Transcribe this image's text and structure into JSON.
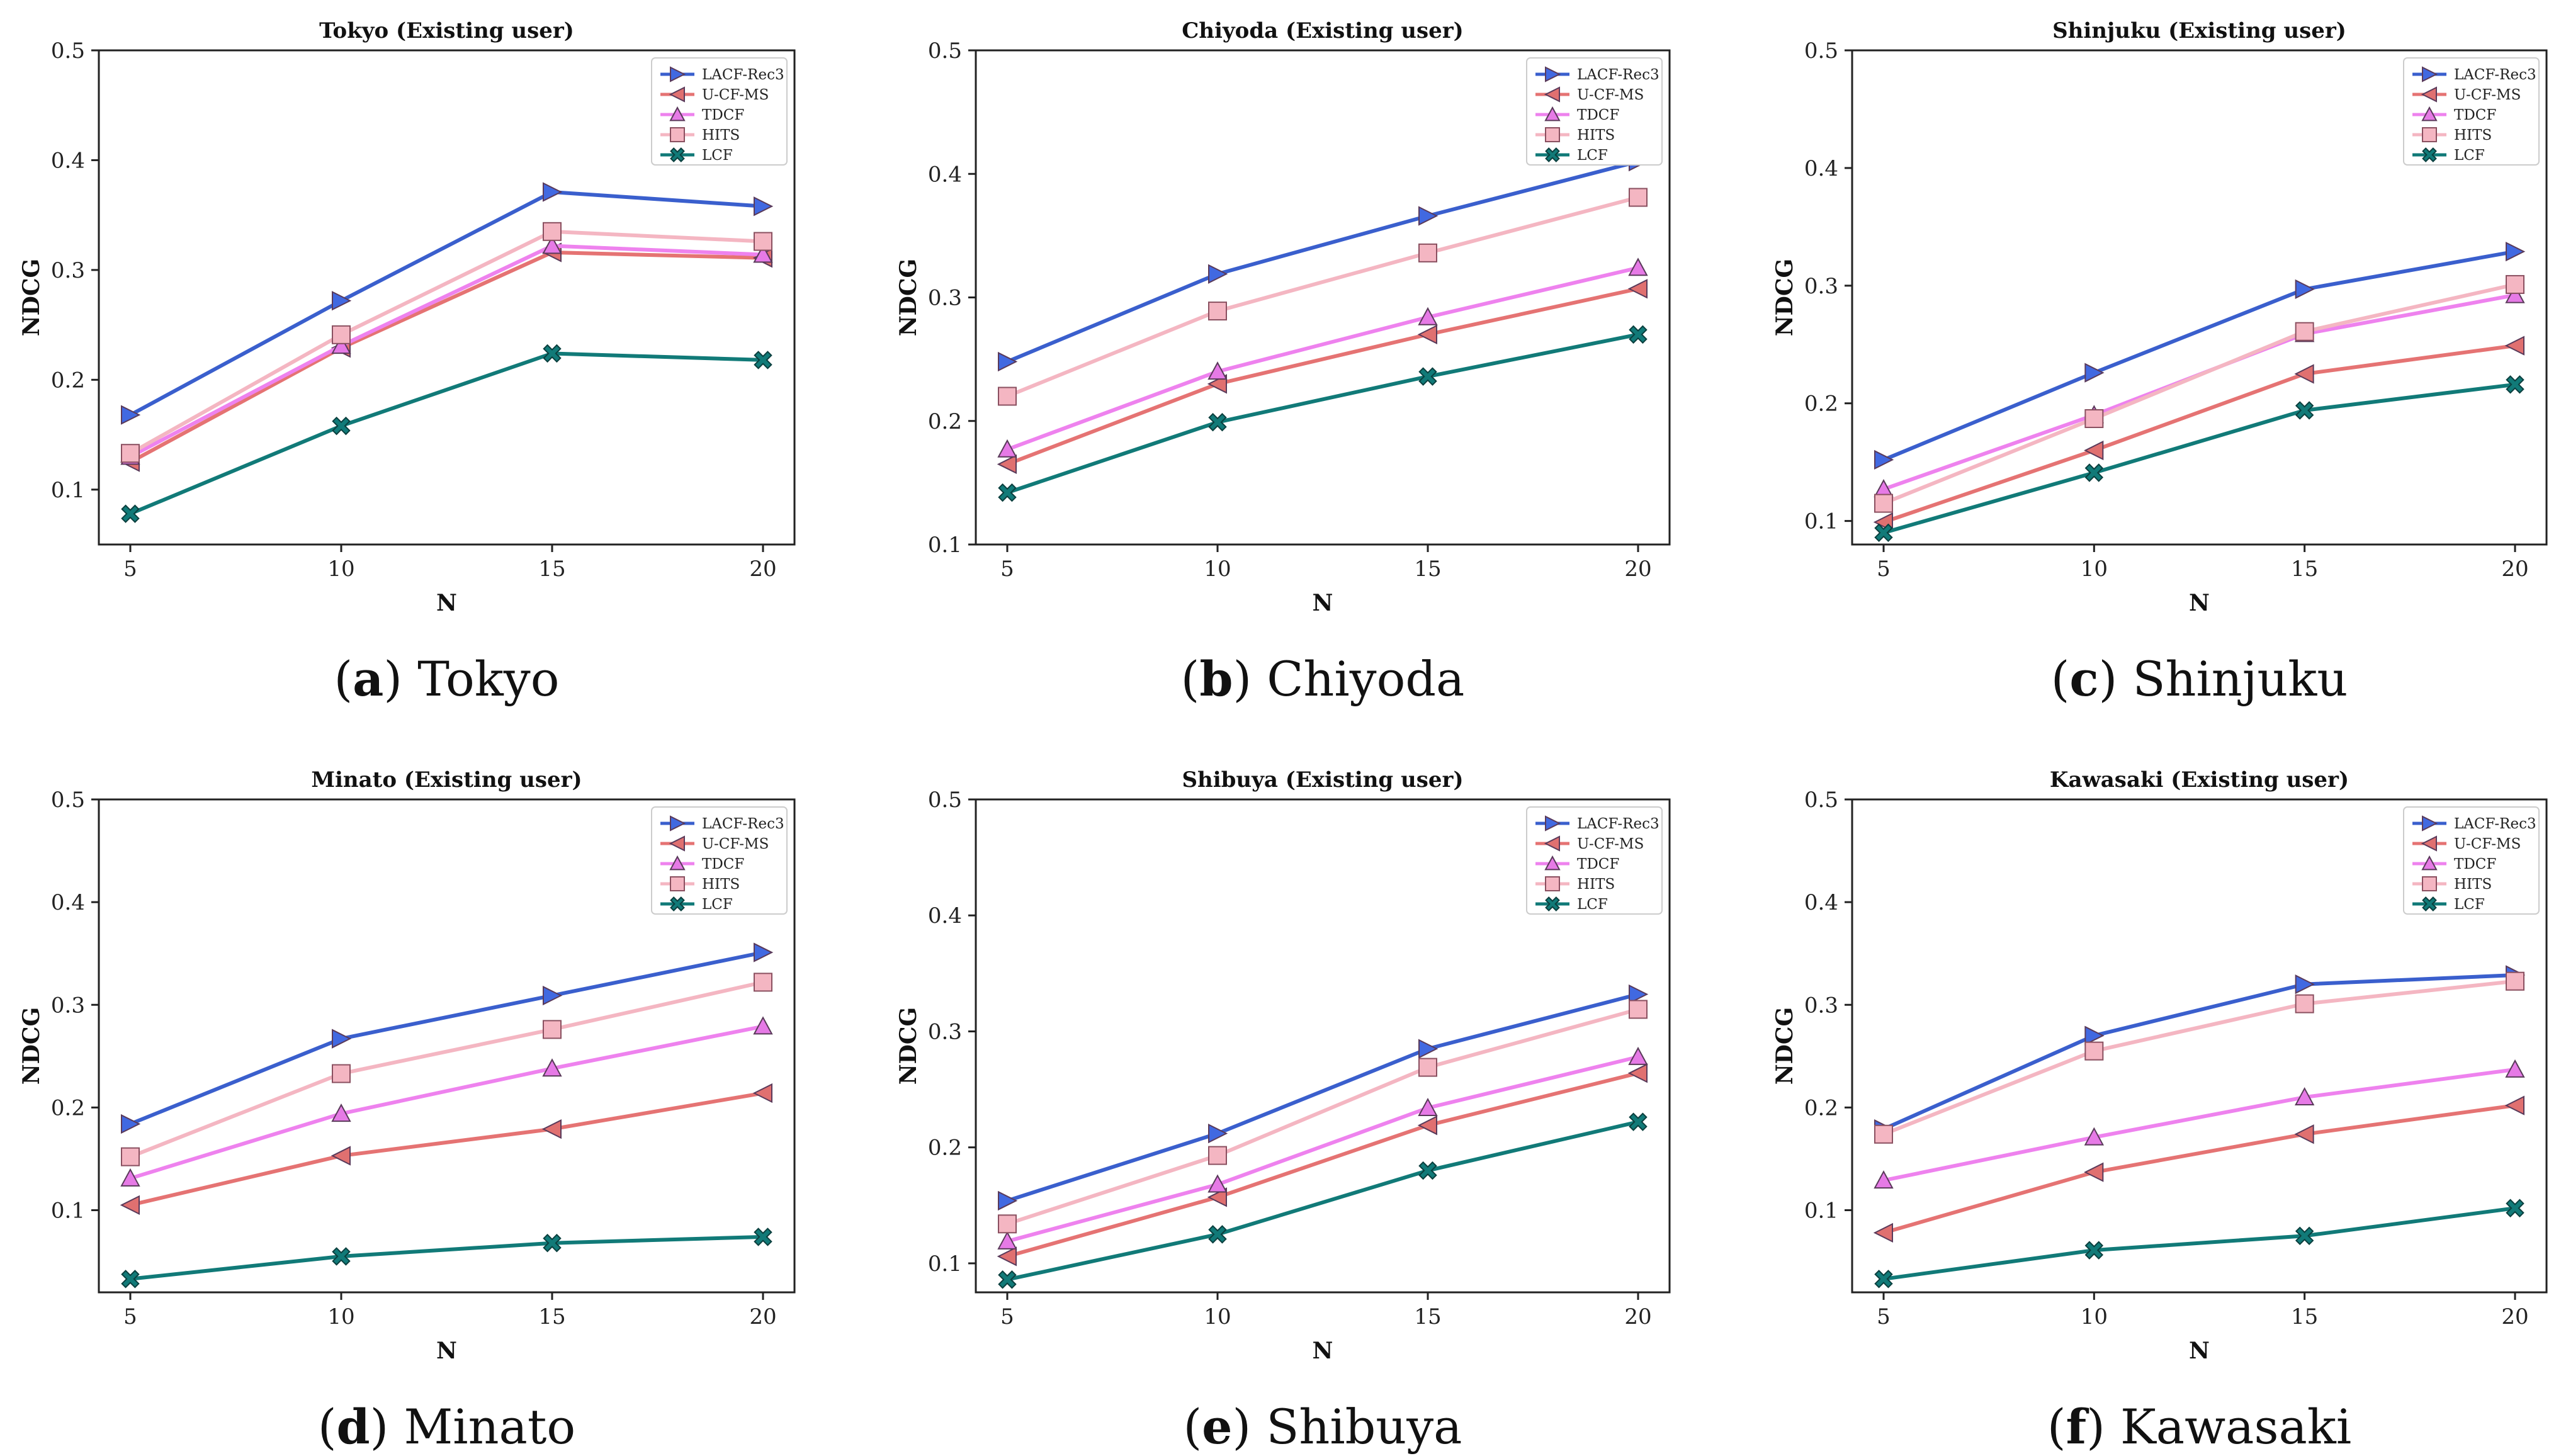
{
  "chart_data": [
    {
      "type": "line",
      "title": "Tokyo (Existing user)",
      "caption_letter": "a",
      "caption_name": "Tokyo",
      "xlabel": "N",
      "ylabel": "NDCG",
      "x": [
        5,
        10,
        15,
        20
      ],
      "x_ticks": [
        "5",
        "10",
        "15",
        "20"
      ],
      "ylim": [
        0.05,
        0.5
      ],
      "y_ticks": [
        0.1,
        0.2,
        0.3,
        0.4,
        0.5
      ],
      "y_tick_labels": [
        "0.1",
        "0.2",
        "0.3",
        "0.4",
        "0.5"
      ],
      "legend_position": "top-right",
      "series": [
        {
          "name": "LACF-Rec3",
          "values": [
            0.168,
            0.272,
            0.371,
            0.358
          ]
        },
        {
          "name": "U-CF-MS",
          "values": [
            0.125,
            0.229,
            0.316,
            0.311
          ]
        },
        {
          "name": "TDCF",
          "values": [
            0.13,
            0.231,
            0.322,
            0.314
          ]
        },
        {
          "name": "HITS",
          "values": [
            0.133,
            0.241,
            0.335,
            0.326
          ]
        },
        {
          "name": "LCF",
          "values": [
            0.078,
            0.158,
            0.224,
            0.218
          ]
        }
      ]
    },
    {
      "type": "line",
      "title": "Chiyoda (Existing user)",
      "caption_letter": "b",
      "caption_name": "Chiyoda",
      "xlabel": "N",
      "ylabel": "NDCG",
      "x": [
        5,
        10,
        15,
        20
      ],
      "x_ticks": [
        "5",
        "10",
        "15",
        "20"
      ],
      "ylim": [
        0.1,
        0.5
      ],
      "y_ticks": [
        0.1,
        0.2,
        0.3,
        0.4,
        0.5
      ],
      "y_tick_labels": [
        "0.1",
        "0.2",
        "0.3",
        "0.4",
        "0.5"
      ],
      "legend_position": "top-right",
      "series": [
        {
          "name": "LACF-Rec3",
          "values": [
            0.248,
            0.319,
            0.366,
            0.41
          ]
        },
        {
          "name": "U-CF-MS",
          "values": [
            0.165,
            0.23,
            0.27,
            0.307
          ]
        },
        {
          "name": "TDCF",
          "values": [
            0.177,
            0.24,
            0.284,
            0.324
          ]
        },
        {
          "name": "HITS",
          "values": [
            0.22,
            0.289,
            0.336,
            0.381
          ]
        },
        {
          "name": "LCF",
          "values": [
            0.142,
            0.199,
            0.236,
            0.27
          ]
        }
      ]
    },
    {
      "type": "line",
      "title": "Shinjuku (Existing user)",
      "caption_letter": "c",
      "caption_name": "Shinjuku",
      "xlabel": "N",
      "ylabel": "NDCG",
      "x": [
        5,
        10,
        15,
        20
      ],
      "x_ticks": [
        "5",
        "10",
        "15",
        "20"
      ],
      "ylim": [
        0.08,
        0.5
      ],
      "y_ticks": [
        0.1,
        0.2,
        0.3,
        0.4,
        0.5
      ],
      "y_tick_labels": [
        "0.1",
        "0.2",
        "0.3",
        "0.4",
        "0.5"
      ],
      "legend_position": "top-right",
      "series": [
        {
          "name": "LACF-Rec3",
          "values": [
            0.152,
            0.226,
            0.297,
            0.329
          ]
        },
        {
          "name": "U-CF-MS",
          "values": [
            0.099,
            0.16,
            0.225,
            0.249
          ]
        },
        {
          "name": "TDCF",
          "values": [
            0.127,
            0.19,
            0.259,
            0.292
          ]
        },
        {
          "name": "HITS",
          "values": [
            0.115,
            0.187,
            0.261,
            0.301
          ]
        },
        {
          "name": "LCF",
          "values": [
            0.09,
            0.141,
            0.194,
            0.216
          ]
        }
      ]
    },
    {
      "type": "line",
      "title": "Minato (Existing user)",
      "caption_letter": "d",
      "caption_name": "Minato",
      "xlabel": "N",
      "ylabel": "NDCG",
      "x": [
        5,
        10,
        15,
        20
      ],
      "x_ticks": [
        "5",
        "10",
        "15",
        "20"
      ],
      "ylim": [
        0.02,
        0.5
      ],
      "y_ticks": [
        0.1,
        0.2,
        0.3,
        0.4,
        0.5
      ],
      "y_tick_labels": [
        "0.1",
        "0.2",
        "0.3",
        "0.4",
        "0.5"
      ],
      "legend_position": "top-right",
      "series": [
        {
          "name": "LACF-Rec3",
          "values": [
            0.184,
            0.267,
            0.309,
            0.351
          ]
        },
        {
          "name": "U-CF-MS",
          "values": [
            0.105,
            0.153,
            0.179,
            0.214
          ]
        },
        {
          "name": "TDCF",
          "values": [
            0.131,
            0.194,
            0.238,
            0.279
          ]
        },
        {
          "name": "HITS",
          "values": [
            0.152,
            0.233,
            0.276,
            0.322
          ]
        },
        {
          "name": "LCF",
          "values": [
            0.033,
            0.055,
            0.068,
            0.074
          ]
        }
      ]
    },
    {
      "type": "line",
      "title": "Shibuya (Existing user)",
      "caption_letter": "e",
      "caption_name": "Shibuya",
      "xlabel": "N",
      "ylabel": "NDCG",
      "x": [
        5,
        10,
        15,
        20
      ],
      "x_ticks": [
        "5",
        "10",
        "15",
        "20"
      ],
      "ylim": [
        0.075,
        0.5
      ],
      "y_ticks": [
        0.1,
        0.2,
        0.3,
        0.4,
        0.5
      ],
      "y_tick_labels": [
        "0.1",
        "0.2",
        "0.3",
        "0.4",
        "0.5"
      ],
      "legend_position": "top-right",
      "series": [
        {
          "name": "LACF-Rec3",
          "values": [
            0.154,
            0.212,
            0.285,
            0.332
          ]
        },
        {
          "name": "U-CF-MS",
          "values": [
            0.106,
            0.157,
            0.219,
            0.264
          ]
        },
        {
          "name": "TDCF",
          "values": [
            0.119,
            0.168,
            0.234,
            0.278
          ]
        },
        {
          "name": "HITS",
          "values": [
            0.134,
            0.193,
            0.269,
            0.319
          ]
        },
        {
          "name": "LCF",
          "values": [
            0.086,
            0.125,
            0.18,
            0.222
          ]
        }
      ]
    },
    {
      "type": "line",
      "title": "Kawasaki (Existing user)",
      "caption_letter": "f",
      "caption_name": "Kawasaki",
      "xlabel": "N",
      "ylabel": "NDCG",
      "x": [
        5,
        10,
        15,
        20
      ],
      "x_ticks": [
        "5",
        "10",
        "15",
        "20"
      ],
      "ylim": [
        0.02,
        0.5
      ],
      "y_ticks": [
        0.1,
        0.2,
        0.3,
        0.4,
        0.5
      ],
      "y_tick_labels": [
        "0.1",
        "0.2",
        "0.3",
        "0.4",
        "0.5"
      ],
      "legend_position": "top-right",
      "series": [
        {
          "name": "LACF-Rec3",
          "values": [
            0.179,
            0.27,
            0.32,
            0.329
          ]
        },
        {
          "name": "U-CF-MS",
          "values": [
            0.078,
            0.137,
            0.174,
            0.202
          ]
        },
        {
          "name": "TDCF",
          "values": [
            0.129,
            0.171,
            0.21,
            0.237
          ]
        },
        {
          "name": "HITS",
          "values": [
            0.174,
            0.255,
            0.301,
            0.323
          ]
        },
        {
          "name": "LCF",
          "values": [
            0.033,
            0.061,
            0.075,
            0.102
          ]
        }
      ]
    }
  ],
  "series_styles": [
    {
      "name": "LACF-Rec3",
      "color": "#3a5fcd",
      "marker": "triangle-right",
      "marker_fill": "#4169e1"
    },
    {
      "name": "U-CF-MS",
      "color": "#e57373",
      "marker": "triangle-left",
      "marker_fill": "#e07070"
    },
    {
      "name": "TDCF",
      "color": "#ee82ee",
      "marker": "triangle-up",
      "marker_fill": "#e67ae6"
    },
    {
      "name": "HITS",
      "color": "#f4b6c2",
      "marker": "square",
      "marker_fill": "#f4b6c2"
    },
    {
      "name": "LCF",
      "color": "#117a78",
      "marker": "x",
      "marker_fill": "#117a78"
    }
  ]
}
